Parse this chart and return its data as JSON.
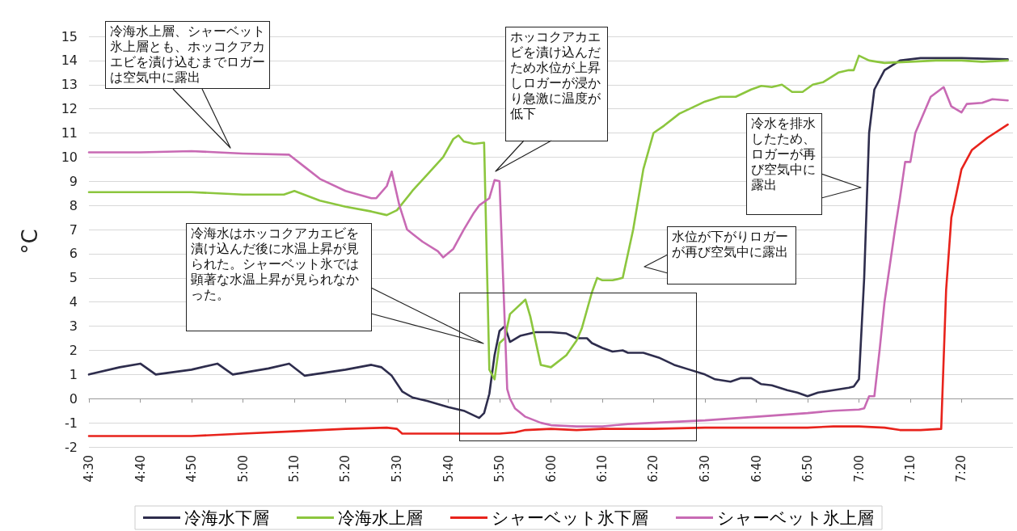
{
  "chart_data": {
    "type": "line",
    "ylabel": "°C",
    "legend": "bottom",
    "grid": "y",
    "marker": "none",
    "line_style": "solid",
    "xlim": [
      4.5,
      7.5
    ],
    "ylim": [
      -2,
      15
    ],
    "yticks": [
      -2,
      -1,
      0,
      1,
      2,
      3,
      4,
      5,
      6,
      7,
      8,
      9,
      10,
      11,
      12,
      13,
      14,
      15
    ],
    "xticks": [
      {
        "value": 4.5,
        "label": "4:30"
      },
      {
        "value": 4.667,
        "label": "4:40"
      },
      {
        "value": 4.833,
        "label": "4:50"
      },
      {
        "value": 5.0,
        "label": "5:00"
      },
      {
        "value": 5.167,
        "label": "5:10"
      },
      {
        "value": 5.333,
        "label": "5:20"
      },
      {
        "value": 5.5,
        "label": "5:30"
      },
      {
        "value": 5.667,
        "label": "5:40"
      },
      {
        "value": 5.833,
        "label": "5:50"
      },
      {
        "value": 6.0,
        "label": "6:00"
      },
      {
        "value": 6.167,
        "label": "6:10"
      },
      {
        "value": 6.333,
        "label": "6:20"
      },
      {
        "value": 6.5,
        "label": "6:30"
      },
      {
        "value": 6.667,
        "label": "6:40"
      },
      {
        "value": 6.833,
        "label": "6:50"
      },
      {
        "value": 7.0,
        "label": "7:00"
      },
      {
        "value": 7.167,
        "label": "7:10"
      },
      {
        "value": 7.333,
        "label": "7:20"
      }
    ],
    "series": [
      {
        "name": "冷海水下層",
        "color": "#2e2d4d",
        "x": [
          4.5,
          4.6,
          4.667,
          4.717,
          4.833,
          4.917,
          4.967,
          5.083,
          5.15,
          5.2,
          5.333,
          5.417,
          5.45,
          5.483,
          5.517,
          5.55,
          5.6,
          5.667,
          5.717,
          5.767,
          5.783,
          5.8,
          5.817,
          5.833,
          5.85,
          5.867,
          5.9,
          5.95,
          6.0,
          6.05,
          6.083,
          6.117,
          6.133,
          6.167,
          6.2,
          6.233,
          6.25,
          6.3,
          6.35,
          6.4,
          6.45,
          6.5,
          6.533,
          6.583,
          6.617,
          6.65,
          6.683,
          6.717,
          6.767,
          6.8,
          6.833,
          6.867,
          6.917,
          6.967,
          6.983,
          7.0,
          7.017,
          7.033,
          7.05,
          7.083,
          7.133,
          7.2,
          7.333,
          7.483
        ],
        "values": [
          1.0,
          1.3,
          1.45,
          1.0,
          1.2,
          1.45,
          1.0,
          1.25,
          1.45,
          0.95,
          1.2,
          1.4,
          1.3,
          0.95,
          0.3,
          0.05,
          -0.1,
          -0.35,
          -0.5,
          -0.8,
          -0.6,
          0.2,
          1.8,
          2.8,
          3.0,
          2.35,
          2.6,
          2.75,
          2.75,
          2.7,
          2.5,
          2.5,
          2.3,
          2.1,
          1.95,
          2.0,
          1.9,
          1.9,
          1.7,
          1.4,
          1.2,
          1.0,
          0.8,
          0.7,
          0.85,
          0.85,
          0.6,
          0.55,
          0.35,
          0.25,
          0.1,
          0.25,
          0.35,
          0.45,
          0.5,
          0.8,
          5.0,
          11.0,
          12.8,
          13.6,
          14.0,
          14.1,
          14.1,
          14.05
        ]
      },
      {
        "name": "冷海水上層",
        "color": "#8cc63e",
        "x": [
          4.5,
          4.833,
          5.0,
          5.133,
          5.167,
          5.25,
          5.333,
          5.417,
          5.467,
          5.5,
          5.55,
          5.6,
          5.65,
          5.683,
          5.7,
          5.717,
          5.75,
          5.783,
          5.8,
          5.817,
          5.833,
          5.85,
          5.867,
          5.917,
          5.933,
          5.967,
          6.0,
          6.05,
          6.083,
          6.1,
          6.133,
          6.15,
          6.167,
          6.2,
          6.233,
          6.267,
          6.3,
          6.333,
          6.367,
          6.417,
          6.467,
          6.5,
          6.55,
          6.6,
          6.65,
          6.683,
          6.717,
          6.75,
          6.783,
          6.817,
          6.85,
          6.883,
          6.933,
          6.967,
          6.983,
          7.0,
          7.033,
          7.083,
          7.167,
          7.25,
          7.333,
          7.4,
          7.483
        ],
        "values": [
          8.55,
          8.55,
          8.45,
          8.45,
          8.6,
          8.2,
          7.95,
          7.75,
          7.6,
          7.8,
          8.6,
          9.3,
          10.0,
          10.75,
          10.9,
          10.65,
          10.55,
          10.6,
          1.2,
          0.8,
          2.3,
          2.5,
          3.5,
          4.1,
          3.4,
          1.4,
          1.3,
          1.8,
          2.4,
          2.9,
          4.4,
          5.0,
          4.9,
          4.9,
          5.0,
          7.0,
          9.5,
          11.0,
          11.3,
          11.8,
          12.1,
          12.3,
          12.5,
          12.5,
          12.8,
          12.95,
          12.9,
          13.0,
          12.7,
          12.7,
          13.0,
          13.1,
          13.5,
          13.6,
          13.6,
          14.2,
          14.0,
          13.9,
          13.95,
          14.0,
          14.0,
          13.95,
          14.0
        ]
      },
      {
        "name": "シャーベット氷下層",
        "color": "#e8231c",
        "x": [
          4.5,
          4.833,
          5.0,
          5.167,
          5.333,
          5.467,
          5.5,
          5.517,
          5.667,
          5.833,
          5.883,
          5.917,
          6.0,
          6.083,
          6.167,
          6.333,
          6.5,
          6.667,
          6.833,
          6.917,
          7.0,
          7.083,
          7.133,
          7.2,
          7.267,
          7.283,
          7.3,
          7.333,
          7.367,
          7.417,
          7.483
        ],
        "values": [
          -1.55,
          -1.55,
          -1.45,
          -1.35,
          -1.25,
          -1.2,
          -1.25,
          -1.45,
          -1.45,
          -1.45,
          -1.4,
          -1.3,
          -1.25,
          -1.3,
          -1.25,
          -1.25,
          -1.2,
          -1.2,
          -1.2,
          -1.15,
          -1.15,
          -1.2,
          -1.3,
          -1.3,
          -1.25,
          4.5,
          7.5,
          9.5,
          10.3,
          10.8,
          11.35
        ]
      },
      {
        "name": "シャーベット氷上層",
        "color": "#c86ab4",
        "x": [
          4.5,
          4.667,
          4.833,
          5.0,
          5.15,
          5.2,
          5.25,
          5.333,
          5.417,
          5.433,
          5.467,
          5.483,
          5.508,
          5.533,
          5.583,
          5.633,
          5.65,
          5.683,
          5.717,
          5.75,
          5.767,
          5.8,
          5.817,
          5.833,
          5.858,
          5.867,
          5.883,
          5.917,
          5.967,
          6.0,
          6.083,
          6.167,
          6.25,
          6.333,
          6.5,
          6.667,
          6.833,
          6.917,
          7.0,
          7.017,
          7.033,
          7.05,
          7.067,
          7.083,
          7.117,
          7.133,
          7.15,
          7.167,
          7.183,
          7.233,
          7.275,
          7.3,
          7.333,
          7.35,
          7.4,
          7.433,
          7.483
        ],
        "values": [
          10.2,
          10.2,
          10.25,
          10.15,
          10.1,
          9.6,
          9.1,
          8.6,
          8.3,
          8.3,
          8.8,
          9.4,
          8.0,
          7.0,
          6.5,
          6.1,
          5.85,
          6.2,
          7.0,
          7.7,
          8.0,
          8.3,
          9.05,
          9.0,
          0.4,
          0.0,
          -0.4,
          -0.75,
          -1.0,
          -1.1,
          -1.15,
          -1.15,
          -1.05,
          -1.0,
          -0.9,
          -0.75,
          -0.6,
          -0.5,
          -0.45,
          -0.4,
          0.1,
          0.1,
          2.0,
          4.0,
          7.0,
          8.3,
          9.8,
          9.8,
          11.0,
          12.5,
          12.9,
          12.1,
          11.85,
          12.2,
          12.25,
          12.4,
          12.35
        ]
      }
    ],
    "annotations": [
      "冷海水上層、シャーベット氷上層とも、ホッコクアカエビを漬け込むまでロガーは空気中に露出",
      "ホッコクアカエビを漬け込んだため水位が上昇しロガーが浸かり急激に温度が低下",
      "冷海水はホッコクアカエビを漬け込んだ後に水温上昇が見られた。シャーベット氷では顕著な水温上昇が見られなかった。",
      "冷水を排水したため、ロガーが再び空気中に露出",
      "水位が下がりロガーが再び空気中に露出"
    ]
  }
}
